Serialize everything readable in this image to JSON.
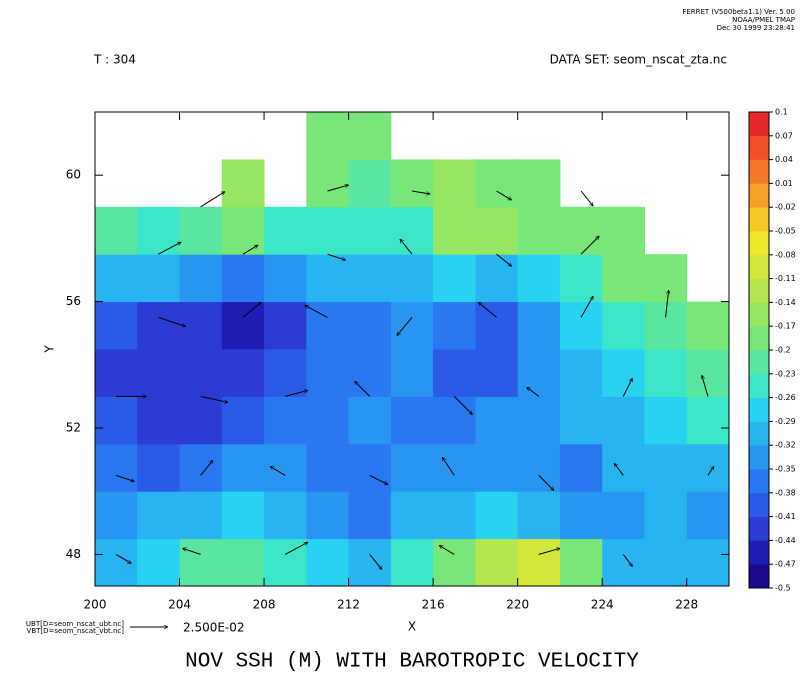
{
  "chart_data": {
    "type": "heatmap",
    "title": "NOV SSH (M) WITH BAROTROPIC VELOCITY",
    "header": [
      "FERRET (V500beta1.1) Ver. 5.00",
      "NOAA/PMEL TMAP",
      "Dec 30 1999 23:28:41"
    ],
    "time_label": "T : 304",
    "dataset_label": "DATA SET: seom_nscat_zta.nc",
    "x_label": "X",
    "y_label": "Y",
    "vector_sources": [
      "UBT[D=seom_nscat_ubt.nc]",
      "VBT[D=seom_nscat_vbt.nc]"
    ],
    "reference_vector": {
      "value": 0.025,
      "label": "2.500E-02"
    },
    "xlim": [
      200,
      230
    ],
    "ylim": [
      47,
      62
    ],
    "xticks": [
      200,
      204,
      208,
      212,
      216,
      220,
      224,
      228
    ],
    "yticks": [
      48,
      52,
      56,
      60
    ],
    "x": [
      201,
      203,
      205,
      207,
      209,
      211,
      213,
      215,
      217,
      219,
      221,
      223,
      225,
      227,
      229
    ],
    "y": [
      47.75,
      49.25,
      50.75,
      52.25,
      53.75,
      55.25,
      56.75,
      58.25,
      59.75,
      61.25
    ],
    "z": [
      [
        -0.3,
        -0.27,
        -0.22,
        -0.21,
        -0.26,
        -0.28,
        -0.3,
        -0.25,
        -0.18,
        -0.12,
        -0.1,
        -0.2,
        -0.3,
        -0.3,
        -0.32
      ],
      [
        -0.33,
        -0.32,
        -0.3,
        -0.28,
        -0.3,
        -0.33,
        -0.36,
        -0.32,
        -0.3,
        -0.27,
        -0.3,
        -0.33,
        -0.35,
        -0.32,
        -0.33
      ],
      [
        -0.38,
        -0.39,
        -0.38,
        -0.35,
        -0.33,
        -0.37,
        -0.38,
        -0.35,
        -0.34,
        -0.35,
        -0.33,
        -0.36,
        -0.32,
        -0.3,
        -0.3
      ],
      [
        -0.41,
        -0.42,
        -0.42,
        -0.4,
        -0.38,
        -0.36,
        -0.35,
        -0.37,
        -0.36,
        -0.34,
        -0.33,
        -0.32,
        -0.3,
        -0.28,
        -0.26
      ],
      [
        -0.43,
        -0.44,
        -0.43,
        -0.42,
        -0.4,
        -0.37,
        -0.36,
        -0.35,
        -0.39,
        -0.4,
        -0.35,
        -0.3,
        -0.28,
        -0.24,
        -0.22
      ],
      [
        -0.4,
        -0.42,
        -0.44,
        -0.45,
        -0.43,
        -0.38,
        -0.36,
        -0.35,
        -0.38,
        -0.4,
        -0.33,
        -0.28,
        -0.25,
        -0.22,
        -0.2
      ],
      [
        -0.3,
        -0.32,
        -0.35,
        -0.36,
        -0.34,
        -0.3,
        -0.32,
        -0.32,
        -0.29,
        -0.3,
        -0.27,
        -0.24,
        -0.2,
        -0.19,
        null
      ],
      [
        -0.22,
        -0.25,
        -0.22,
        -0.2,
        -0.24,
        -0.25,
        -0.26,
        -0.24,
        -0.15,
        -0.16,
        -0.2,
        -0.2,
        -0.19,
        null,
        null
      ],
      [
        null,
        null,
        null,
        -0.17,
        null,
        -0.2,
        -0.22,
        -0.2,
        -0.17,
        -0.2,
        -0.18,
        null,
        null,
        null,
        null
      ],
      [
        null,
        null,
        null,
        null,
        null,
        -0.18,
        -0.18,
        null,
        null,
        null,
        null,
        null,
        null,
        null,
        null
      ]
    ],
    "levels": [
      -0.5,
      -0.47,
      -0.44,
      -0.41,
      -0.38,
      -0.35,
      -0.32,
      -0.29,
      -0.26,
      -0.23,
      -0.2,
      -0.17,
      -0.14,
      -0.11,
      -0.08,
      -0.05,
      -0.02,
      0.01,
      0.04,
      0.07,
      0.1
    ],
    "colors": [
      "#1a0a8c",
      "#1e1eb4",
      "#2a3cd2",
      "#2a5ae6",
      "#2a78f0",
      "#2896f0",
      "#28b4f0",
      "#28d2f0",
      "#3ce6c8",
      "#5ae6a0",
      "#78e678",
      "#96e664",
      "#b4e650",
      "#d2e63c",
      "#f0e628",
      "#f5c828",
      "#f5a028",
      "#f57828",
      "#f05028",
      "#e62828"
    ],
    "vectors": {
      "x": [
        201,
        205,
        209,
        213,
        217,
        221,
        225,
        201,
        205,
        209,
        213,
        217,
        221,
        225,
        229,
        201,
        205,
        209,
        213,
        217,
        221,
        225,
        229,
        203,
        207,
        211,
        215,
        219,
        223,
        227,
        203,
        207,
        211,
        215,
        219,
        223,
        205,
        211,
        215,
        219,
        223
      ],
      "y": [
        48,
        48,
        48,
        48,
        48,
        48,
        48,
        50.5,
        50.5,
        50.5,
        50.5,
        50.5,
        50.5,
        50.5,
        50.5,
        53,
        53,
        53,
        53,
        53,
        53,
        53,
        53,
        55.5,
        55.5,
        55.5,
        55.5,
        55.5,
        55.5,
        55.5,
        57.5,
        57.5,
        57.5,
        57.5,
        57.5,
        57.5,
        59,
        59.5,
        59.5,
        59.5,
        59.5
      ],
      "u": [
        0.01,
        -0.012,
        0.015,
        0.008,
        -0.01,
        0.014,
        0.006,
        0.012,
        0.008,
        -0.01,
        0.012,
        -0.008,
        0.01,
        -0.006,
        0.004,
        0.02,
        0.018,
        0.015,
        -0.01,
        0.012,
        -0.008,
        0.006,
        -0.004,
        0.018,
        0.012,
        -0.015,
        -0.01,
        -0.012,
        0.008,
        0.002,
        0.015,
        0.01,
        0.012,
        -0.008,
        0.01,
        0.012,
        0.016,
        0.014,
        0.012,
        0.01,
        0.008
      ],
      "v": [
        -0.006,
        0.004,
        0.008,
        -0.01,
        0.006,
        0.004,
        -0.008,
        -0.004,
        0.01,
        0.006,
        -0.006,
        0.012,
        -0.01,
        0.008,
        0.006,
        0.0,
        -0.004,
        0.004,
        0.01,
        -0.012,
        0.006,
        0.012,
        0.014,
        -0.006,
        0.01,
        0.008,
        -0.012,
        0.01,
        0.014,
        0.018,
        0.008,
        0.006,
        -0.004,
        0.01,
        -0.008,
        0.012,
        0.01,
        0.004,
        -0.002,
        -0.006,
        -0.01
      ]
    }
  }
}
